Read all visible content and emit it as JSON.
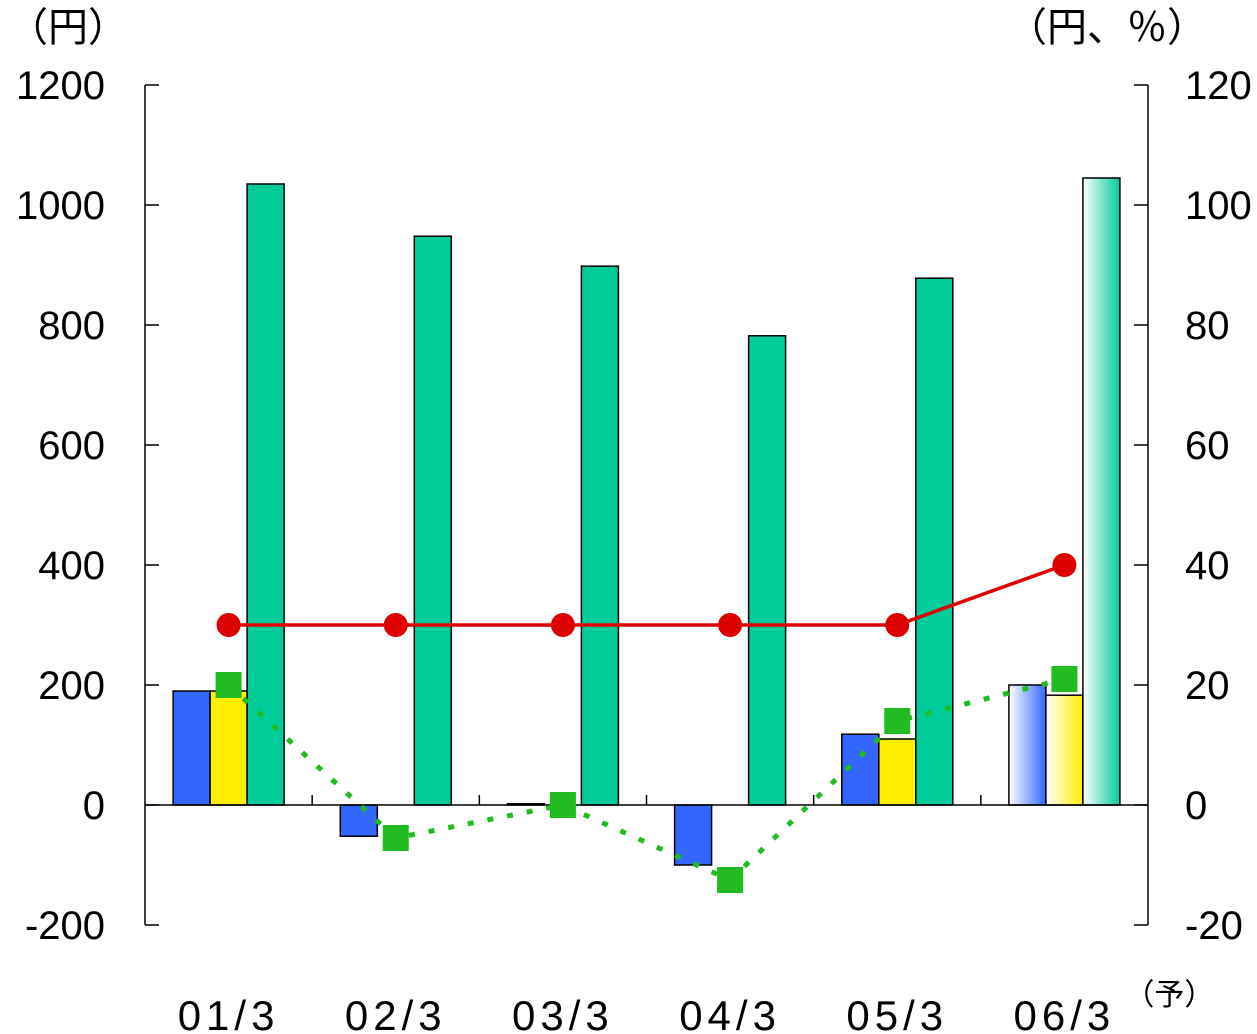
{
  "chart_data": {
    "type": "bar",
    "unit_left": "（円）",
    "unit_right": "（円、％）",
    "categories": [
      "01/3",
      "02/3",
      "03/3",
      "04/3",
      "05/3",
      "06/3"
    ],
    "category_suffix": [
      "",
      "",
      "",
      "",
      "",
      "（予）"
    ],
    "ylim_left": [
      -200,
      1200
    ],
    "yticks_left": [
      "1200",
      "1000",
      "800",
      "600",
      "400",
      "200",
      "0",
      "-200"
    ],
    "ylim_right": [
      -20,
      120
    ],
    "yticks_right": [
      "120",
      "100",
      "80",
      "60",
      "40",
      "20",
      "0",
      "-20"
    ],
    "series": [
      {
        "type": "bar",
        "axis": "left",
        "color": "#3366ff",
        "values": [
          190,
          -52,
          2,
          -100,
          118,
          200
        ]
      },
      {
        "type": "bar",
        "axis": "left",
        "color": "#ffee00",
        "values": [
          190,
          null,
          null,
          null,
          110,
          183
        ]
      },
      {
        "type": "bar",
        "axis": "left",
        "color": "#00cc99",
        "values": [
          1035,
          948,
          898,
          782,
          878,
          1045
        ]
      },
      {
        "type": "line",
        "axis": "right",
        "color": "#dd0000",
        "marker": "circle",
        "line_style": "solid",
        "values": [
          30,
          30,
          30,
          30,
          30,
          40
        ]
      },
      {
        "type": "line",
        "axis": "right",
        "color": "#22bb22",
        "marker": "square",
        "line_style": "dotted",
        "values": [
          20,
          -5.5,
          0,
          -12.5,
          14,
          21
        ]
      }
    ],
    "forecast_last_category": true,
    "legend": "none",
    "grid": false
  }
}
